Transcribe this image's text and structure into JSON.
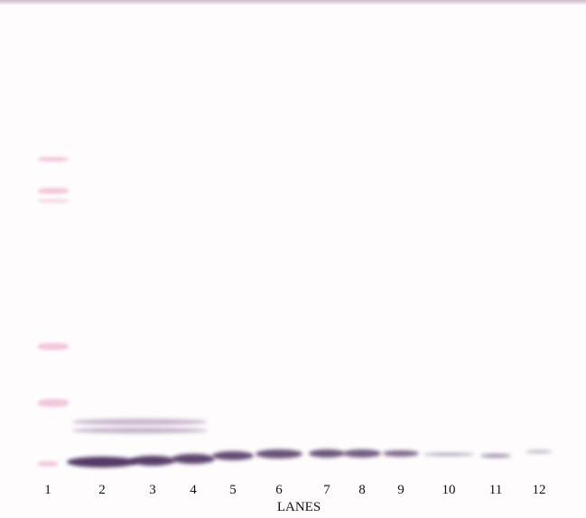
{
  "lanes": [
    "1",
    "2",
    "3",
    "4",
    "5",
    "6",
    "7",
    "8",
    "9",
    "10",
    "11",
    "12"
  ],
  "axis_label": "LANES",
  "colors": {
    "band": "#4a2f5e",
    "marker": "#f2c8de",
    "background": "#fefcfd"
  },
  "band_intensity_by_lane": [
    0,
    1.0,
    0.95,
    0.9,
    0.85,
    0.8,
    0.78,
    0.72,
    0.62,
    0.25,
    0.35,
    0.1
  ]
}
